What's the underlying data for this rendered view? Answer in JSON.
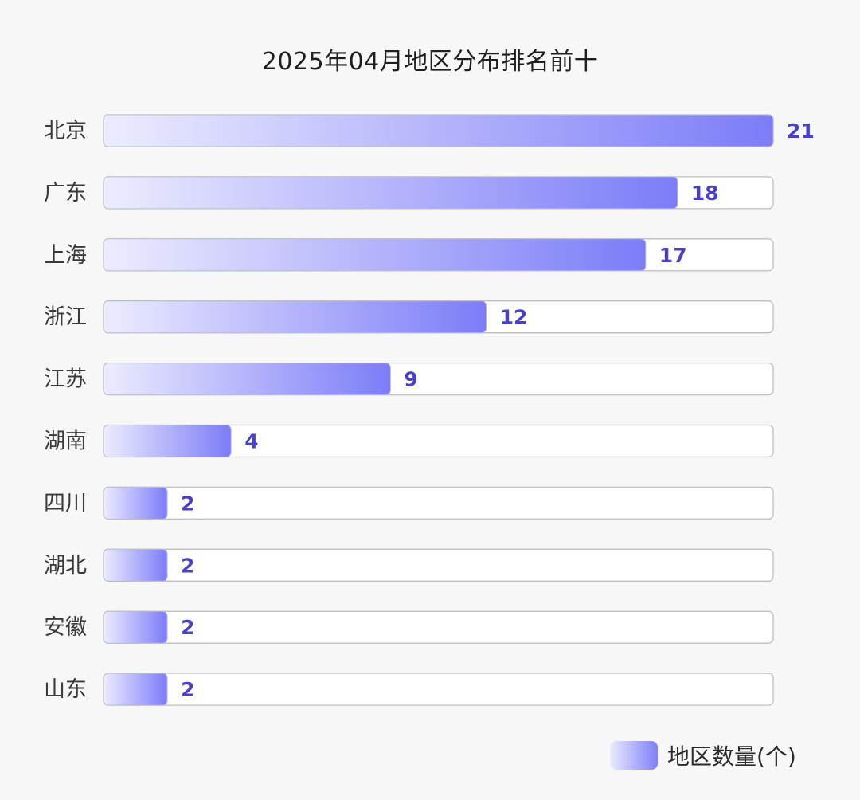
{
  "chart_data": {
    "type": "bar",
    "orientation": "horizontal",
    "title": "2025年04月地区分布排名前十",
    "categories": [
      "北京",
      "广东",
      "上海",
      "浙江",
      "江苏",
      "湖南",
      "四川",
      "湖北",
      "安徽",
      "山东"
    ],
    "series": [
      {
        "name": "地区数量(个)",
        "values": [
          21,
          18,
          17,
          12,
          9,
          4,
          2,
          2,
          2,
          2
        ]
      }
    ],
    "xlim": [
      0,
      21
    ],
    "grid": false,
    "legend_position": "bottom-right",
    "data_labels": true,
    "colors": {
      "bar_start": "#ececff",
      "bar_end": "#7c7cf8",
      "track_fill": "#ffffff",
      "track_stroke": "#bdbdc6",
      "value_label": "#4a3fc8"
    }
  }
}
